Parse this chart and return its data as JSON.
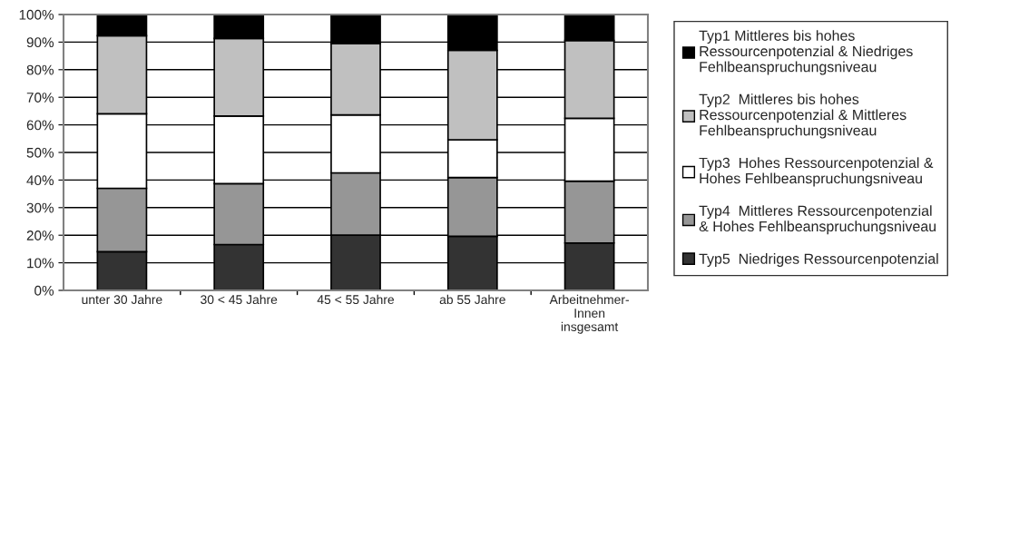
{
  "chart_data": {
    "type": "bar",
    "stacked": true,
    "categories": [
      "unter 30 Jahre",
      "30 < 45 Jahre",
      "45 < 55 Jahre",
      "ab 55 Jahre",
      "Arbeitnehmer-\nInnen\ninsgesamt"
    ],
    "series": [
      {
        "name": "Typ5  Niedriges Ressourcenpotenzial",
        "color": "#333333",
        "values": [
          14,
          16.6,
          20,
          19.6,
          17.2
        ]
      },
      {
        "name": "Typ4  Mittleres Ressourcenpotenzial\n& Hohes Fehlbeanspruchungsniveau",
        "color": "#969696",
        "values": [
          23,
          22.1,
          22.6,
          21.3,
          22.4
        ]
      },
      {
        "name": "Typ3  Hohes Ressourcenpotenzial &\nHohes Fehlbeanspruchungsniveau",
        "color": "#ffffff",
        "values": [
          27,
          24.5,
          21,
          13.7,
          22.8
        ]
      },
      {
        "name": "Typ2  Mittleres bis hohes\nRessourcenpotenzial & Mittleres\nFehlbeanspruchungsniveau",
        "color": "#c0c0c0",
        "values": [
          28.3,
          28.1,
          25.9,
          32.4,
          28.2
        ]
      },
      {
        "name": "Typ1 Mittleres bis hohes\nRessourcenpotenzial & Niedriges\nFehlbeanspruchungsniveau",
        "color": "#000000",
        "values": [
          7.7,
          8.7,
          10.5,
          13,
          9.4
        ]
      }
    ],
    "ylim": [
      0,
      100
    ],
    "yticks": [
      {
        "value": 0,
        "label": "0%"
      },
      {
        "value": 10,
        "label": "10%"
      },
      {
        "value": 20,
        "label": "20%"
      },
      {
        "value": 30,
        "label": "30%"
      },
      {
        "value": 40,
        "label": "40%"
      },
      {
        "value": 50,
        "label": "50%"
      },
      {
        "value": 60,
        "label": "60%"
      },
      {
        "value": 70,
        "label": "70%"
      },
      {
        "value": 80,
        "label": "80%"
      },
      {
        "value": 90,
        "label": "90%"
      },
      {
        "value": 100,
        "label": "100%"
      }
    ],
    "grid": "y",
    "legend": "right"
  }
}
